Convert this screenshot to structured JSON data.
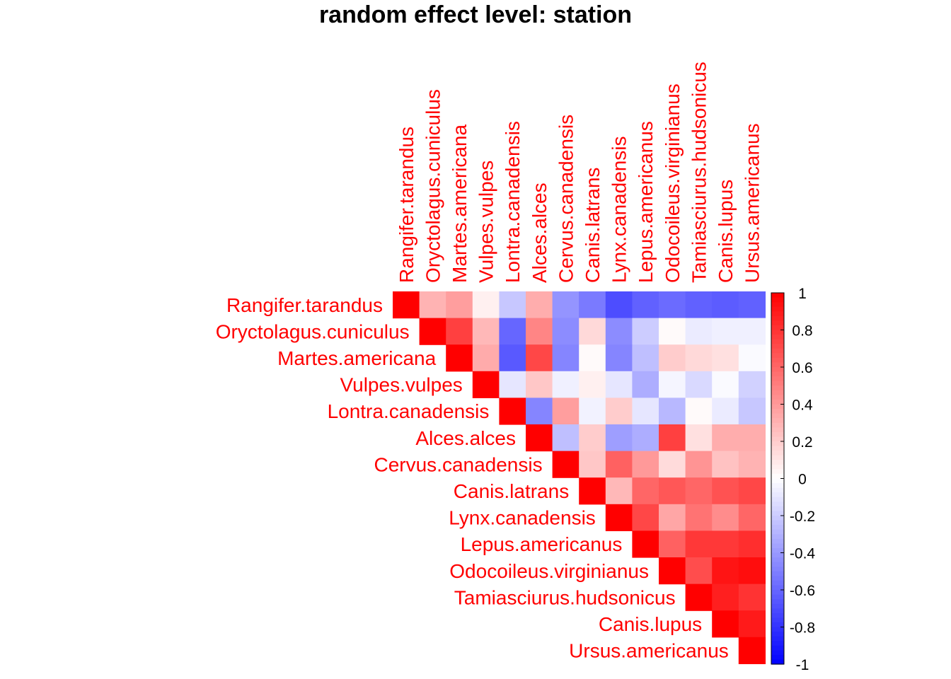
{
  "chart_data": {
    "type": "heatmap",
    "title": "random effect level: station",
    "labels": [
      "Rangifer.tarandus",
      "Oryctolagus.cuniculus",
      "Martes.americana",
      "Vulpes.vulpes",
      "Lontra.canadensis",
      "Alces.alces",
      "Cervus.canadensis",
      "Canis.latrans",
      "Lynx.canadensis",
      "Lepus.americanus",
      "Odocoileus.virginianus",
      "Tamiasciurus.hudsonicus",
      "Canis.lupus",
      "Ursus.americanus"
    ],
    "matrix": [
      [
        1,
        0.3,
        0.38,
        0.06,
        -0.22,
        0.32,
        -0.42,
        -0.52,
        -0.7,
        -0.62,
        -0.58,
        -0.62,
        -0.64,
        -0.62
      ],
      [
        null,
        1,
        0.75,
        0.28,
        -0.6,
        0.48,
        -0.45,
        0.15,
        -0.45,
        -0.2,
        0.02,
        -0.08,
        -0.06,
        -0.06
      ],
      [
        null,
        null,
        1,
        0.33,
        -0.65,
        0.72,
        -0.48,
        0.02,
        -0.48,
        -0.25,
        0.2,
        0.15,
        0.12,
        -0.02
      ],
      [
        null,
        null,
        null,
        1,
        -0.1,
        0.22,
        -0.06,
        0.06,
        -0.1,
        -0.32,
        -0.04,
        -0.15,
        -0.02,
        -0.18
      ],
      [
        null,
        null,
        null,
        null,
        1,
        -0.48,
        0.38,
        -0.05,
        0.2,
        -0.1,
        -0.28,
        0.02,
        -0.08,
        -0.22
      ],
      [
        null,
        null,
        null,
        null,
        null,
        1,
        -0.25,
        0.2,
        -0.38,
        -0.32,
        0.75,
        0.12,
        0.32,
        0.32
      ],
      [
        null,
        null,
        null,
        null,
        null,
        null,
        1,
        0.22,
        0.62,
        0.4,
        0.14,
        0.42,
        0.24,
        0.3
      ],
      [
        null,
        null,
        null,
        null,
        null,
        null,
        null,
        1,
        0.28,
        0.6,
        0.66,
        0.6,
        0.68,
        0.72
      ],
      [
        null,
        null,
        null,
        null,
        null,
        null,
        null,
        null,
        1,
        0.72,
        0.35,
        0.55,
        0.45,
        0.6
      ],
      [
        null,
        null,
        null,
        null,
        null,
        null,
        null,
        null,
        null,
        1,
        0.62,
        0.78,
        0.78,
        0.82
      ],
      [
        null,
        null,
        null,
        null,
        null,
        null,
        null,
        null,
        null,
        null,
        1,
        0.7,
        0.92,
        0.95
      ],
      [
        null,
        null,
        null,
        null,
        null,
        null,
        null,
        null,
        null,
        null,
        null,
        1,
        0.88,
        0.8
      ],
      [
        null,
        null,
        null,
        null,
        null,
        null,
        null,
        null,
        null,
        null,
        null,
        null,
        1,
        0.9
      ],
      [
        null,
        null,
        null,
        null,
        null,
        null,
        null,
        null,
        null,
        null,
        null,
        null,
        null,
        1
      ]
    ],
    "colorbar": {
      "range": [
        -1,
        1
      ],
      "ticks": [
        "1",
        "0.8",
        "0.6",
        "0.4",
        "0.2",
        "0",
        "-0.2",
        "-0.4",
        "-0.6",
        "-0.8",
        "-1"
      ],
      "colors": {
        "low": "#0000ff",
        "mid": "#ffffff",
        "high": "#ff0000"
      }
    },
    "label_color": "#ff0000"
  }
}
